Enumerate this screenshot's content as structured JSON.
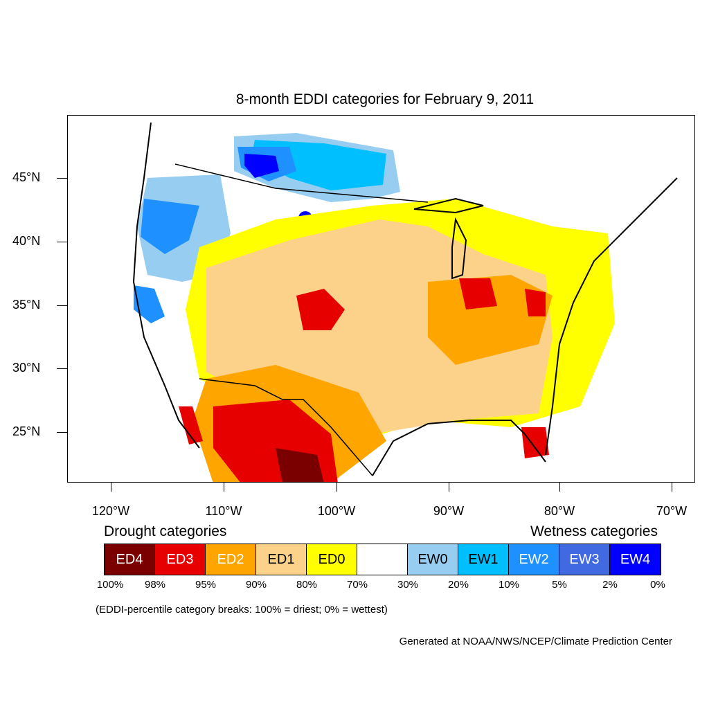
{
  "title": "8-month EDDI categories for February 9, 2011",
  "lat_labels": [
    "45°N",
    "40°N",
    "35°N",
    "30°N",
    "25°N"
  ],
  "lon_labels": [
    "120°W",
    "110°W",
    "100°W",
    "90°W",
    "80°W",
    "70°W"
  ],
  "legend": {
    "drought_title": "Drought categories",
    "wetness_title": "Wetness categories",
    "categories": [
      {
        "label": "ED4",
        "color": "#7a0000",
        "text_color": "#ffffff"
      },
      {
        "label": "ED3",
        "color": "#e60000",
        "text_color": "#ffffff"
      },
      {
        "label": "ED2",
        "color": "#ffa500",
        "text_color": "#ffffff"
      },
      {
        "label": "ED1",
        "color": "#fcd28a",
        "text_color": "#000000"
      },
      {
        "label": "ED0",
        "color": "#ffff00",
        "text_color": "#000000"
      },
      {
        "label": "",
        "color": "#ffffff",
        "text_color": "#000000"
      },
      {
        "label": "EW0",
        "color": "#96cdf0",
        "text_color": "#000000"
      },
      {
        "label": "EW1",
        "color": "#00bfff",
        "text_color": "#000000"
      },
      {
        "label": "EW2",
        "color": "#1e90ff",
        "text_color": "#ffffff"
      },
      {
        "label": "EW3",
        "color": "#4169e1",
        "text_color": "#ffffff"
      },
      {
        "label": "EW4",
        "color": "#0000ff",
        "text_color": "#ffffff"
      }
    ],
    "percentiles": [
      "100%",
      "98%",
      "95%",
      "90%",
      "80%",
      "70%",
      "30%",
      "20%",
      "10%",
      "5%",
      "2%",
      "0%"
    ]
  },
  "note": "(EDDI-percentile category breaks: 100% = driest; 0% = wettest)",
  "credit": "Generated at NOAA/NWS/NCEP/Climate Prediction Center"
}
